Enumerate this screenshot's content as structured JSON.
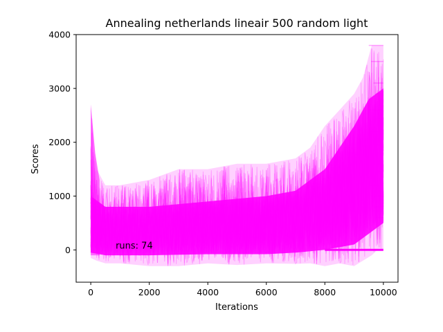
{
  "chart_data": {
    "type": "line",
    "title": "Annealing netherlands lineair 500 random light",
    "xlabel": "Iterations",
    "ylabel": "Scores",
    "xlim": [
      -500,
      10500
    ],
    "ylim": [
      -600,
      4000
    ],
    "xticks": [
      0,
      2000,
      4000,
      6000,
      8000,
      10000
    ],
    "yticks": [
      0,
      1000,
      2000,
      3000,
      4000
    ],
    "grid": false,
    "series_color": "#ff00ff",
    "series_opacity": 0.2,
    "runs": 74,
    "annotation": "runs: 74",
    "envelope": {
      "x": [
        0,
        200,
        500,
        1000,
        2000,
        3000,
        4000,
        5000,
        6000,
        7000,
        7500,
        8000,
        8500,
        9000,
        9300,
        9600,
        9800,
        10000
      ],
      "lower": [
        -150,
        -200,
        -250,
        -250,
        -300,
        -300,
        -250,
        -280,
        -250,
        -260,
        -250,
        -300,
        -250,
        -300,
        -200,
        -100,
        0,
        0
      ],
      "upper": [
        2700,
        1500,
        1200,
        1200,
        1300,
        1500,
        1500,
        1600,
        1600,
        1700,
        1900,
        2300,
        2600,
        2900,
        3200,
        3800,
        3800,
        3800
      ]
    },
    "core_band": {
      "x": [
        0,
        500,
        2000,
        4000,
        6000,
        7000,
        8000,
        8500,
        9000,
        9500,
        10000
      ],
      "lower": [
        -50,
        -100,
        -100,
        -80,
        -80,
        -50,
        0,
        50,
        100,
        300,
        500
      ],
      "upper": [
        1000,
        800,
        800,
        900,
        1000,
        1100,
        1500,
        1900,
        2300,
        2800,
        3000
      ]
    },
    "final_plateau_levels": [
      3800,
      3500,
      3100,
      2900,
      2800,
      2600,
      2200,
      1950,
      1600,
      1450,
      1200,
      1000,
      800,
      600
    ],
    "zero_runs_from_x": 8000
  }
}
